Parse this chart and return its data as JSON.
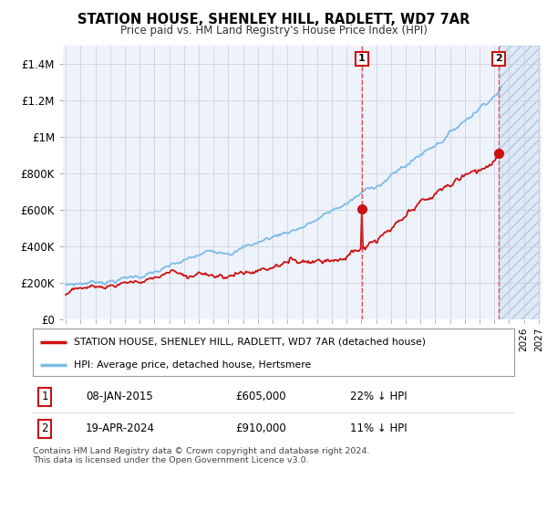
{
  "title": "STATION HOUSE, SHENLEY HILL, RADLETT, WD7 7AR",
  "subtitle": "Price paid vs. HM Land Registry's House Price Index (HPI)",
  "legend_line1": "STATION HOUSE, SHENLEY HILL, RADLETT, WD7 7AR (detached house)",
  "legend_line2": "HPI: Average price, detached house, Hertsmere",
  "annotation1_date": "08-JAN-2015",
  "annotation1_price": "£605,000",
  "annotation1_hpi": "22% ↓ HPI",
  "annotation2_date": "19-APR-2024",
  "annotation2_price": "£910,000",
  "annotation2_hpi": "11% ↓ HPI",
  "footer": "Contains HM Land Registry data © Crown copyright and database right 2024.\nThis data is licensed under the Open Government Licence v3.0.",
  "hpi_color": "#7abce8",
  "price_color": "#cc1111",
  "vline_color": "#dd4444",
  "annotation_box_color": "#cc1111",
  "background_color": "#eef2fb",
  "ylim": [
    0,
    1500000
  ],
  "year_start": 1995,
  "year_end": 2027,
  "annotation1_year": 2015.04,
  "annotation2_year": 2024.3,
  "sale1_price": 605000,
  "sale2_price": 910000
}
